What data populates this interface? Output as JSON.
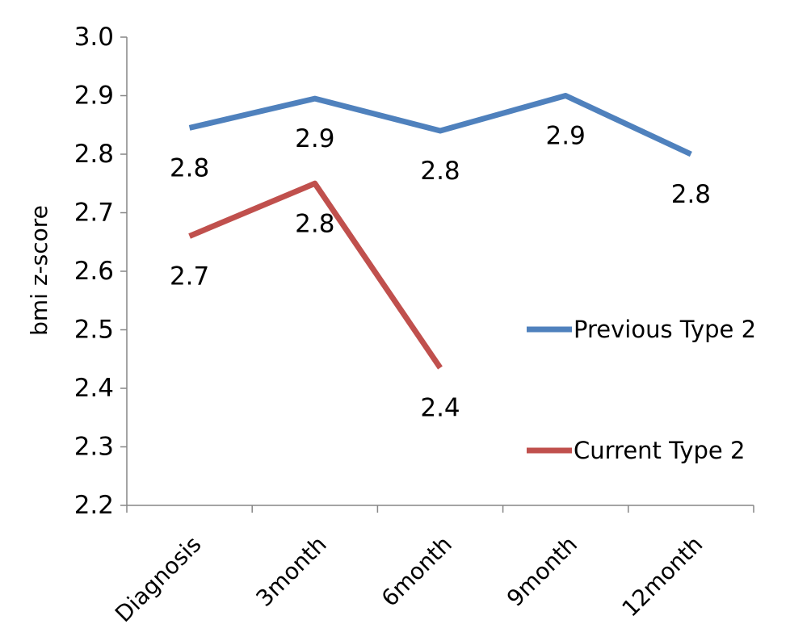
{
  "chart_data": {
    "type": "line",
    "title": "",
    "xlabel": "",
    "ylabel": "bmi z-score",
    "categories": [
      "Diagnosis",
      "3month",
      "6month",
      "9month",
      "12month"
    ],
    "ylim": [
      2.2,
      3.0
    ],
    "yticks": [
      "2.2",
      "2.3",
      "2.4",
      "2.5",
      "2.6",
      "2.7",
      "2.8",
      "2.9",
      "3.0"
    ],
    "grid": false,
    "legend_position": "right",
    "series": [
      {
        "name": "Previous Type 2",
        "color": "#4F81BD",
        "values": [
          2.845,
          2.895,
          2.84,
          2.9,
          2.8
        ],
        "labels": [
          "2.8",
          "2.9",
          "2.8",
          "2.9",
          "2.8"
        ]
      },
      {
        "name": "Current Type 2",
        "color": "#C0504D",
        "values": [
          2.66,
          2.75,
          2.435,
          null,
          null
        ],
        "labels": [
          "2.7",
          "2.8",
          "2.4",
          null,
          null
        ]
      }
    ]
  }
}
